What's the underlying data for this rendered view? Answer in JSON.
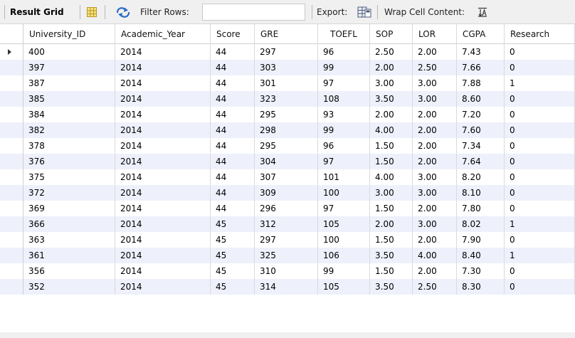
{
  "toolbar": {
    "result_grid_label": "Result Grid",
    "filter_rows_label": "Filter Rows:",
    "filter_rows_value": "",
    "export_label": "Export:",
    "wrap_label": "Wrap Cell Content:",
    "icons": [
      "grid-form-toggle-icon",
      "refresh-icon",
      "export-icon",
      "wrap-cell-icon"
    ]
  },
  "table": {
    "columns": [
      "University_ID",
      "Academic_Year",
      "Score",
      "GRE",
      "TOEFL",
      "SOP",
      "LOR",
      "CGPA",
      "Research"
    ],
    "rows": [
      [
        "400",
        "2014",
        "44",
        "297",
        "96",
        "2.50",
        "2.00",
        "7.43",
        "0"
      ],
      [
        "397",
        "2014",
        "44",
        "303",
        "99",
        "2.00",
        "2.50",
        "7.66",
        "0"
      ],
      [
        "387",
        "2014",
        "44",
        "301",
        "97",
        "3.00",
        "3.00",
        "7.88",
        "1"
      ],
      [
        "385",
        "2014",
        "44",
        "323",
        "108",
        "3.50",
        "3.00",
        "8.60",
        "0"
      ],
      [
        "384",
        "2014",
        "44",
        "295",
        "93",
        "2.00",
        "2.00",
        "7.20",
        "0"
      ],
      [
        "382",
        "2014",
        "44",
        "298",
        "99",
        "4.00",
        "2.00",
        "7.60",
        "0"
      ],
      [
        "378",
        "2014",
        "44",
        "295",
        "96",
        "1.50",
        "2.00",
        "7.34",
        "0"
      ],
      [
        "376",
        "2014",
        "44",
        "304",
        "97",
        "1.50",
        "2.00",
        "7.64",
        "0"
      ],
      [
        "375",
        "2014",
        "44",
        "307",
        "101",
        "4.00",
        "3.00",
        "8.20",
        "0"
      ],
      [
        "372",
        "2014",
        "44",
        "309",
        "100",
        "3.00",
        "3.00",
        "8.10",
        "0"
      ],
      [
        "369",
        "2014",
        "44",
        "296",
        "97",
        "1.50",
        "2.00",
        "7.80",
        "0"
      ],
      [
        "366",
        "2014",
        "45",
        "312",
        "105",
        "2.00",
        "3.00",
        "8.02",
        "1"
      ],
      [
        "363",
        "2014",
        "45",
        "297",
        "100",
        "1.50",
        "2.00",
        "7.90",
        "0"
      ],
      [
        "361",
        "2014",
        "45",
        "325",
        "106",
        "3.50",
        "4.00",
        "8.40",
        "1"
      ],
      [
        "356",
        "2014",
        "45",
        "310",
        "99",
        "1.50",
        "2.00",
        "7.30",
        "0"
      ],
      [
        "352",
        "2014",
        "45",
        "314",
        "105",
        "3.50",
        "2.50",
        "8.30",
        "0"
      ]
    ],
    "selected_row": 0
  },
  "colors": {
    "toolbar_bg": "#f0f0f0",
    "alt_row_bg": "#eef1fb",
    "grid_line": "#dadada",
    "refresh_icon_blue": "#2b6cc4"
  }
}
